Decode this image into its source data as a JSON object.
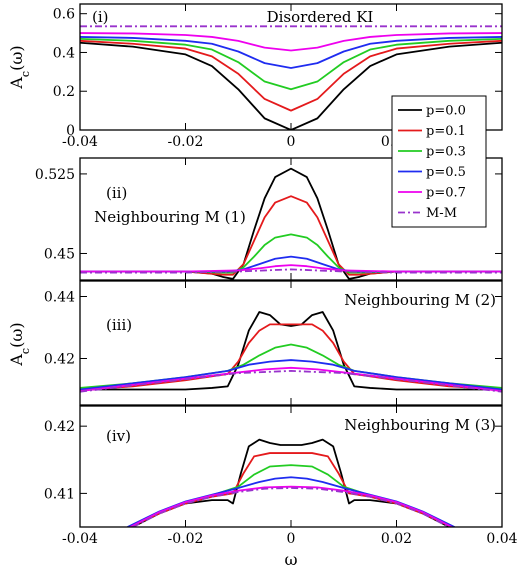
{
  "chart_data": [
    {
      "type": "line",
      "panel": "(i)",
      "annotation": "Disordered KI",
      "ylabel": "A_c(ω)",
      "xlim": [
        -0.04,
        0.04
      ],
      "ylim": [
        0,
        0.65
      ],
      "x_ticks": [
        -0.04,
        -0.02,
        0,
        0.02
      ],
      "x_tick_labels": [
        "-0.04",
        "-0.02",
        "0",
        "0.02"
      ],
      "y_ticks": [
        0,
        0.2,
        0.4,
        0.6
      ],
      "y_tick_labels": [
        "0",
        "0.2",
        "0.4",
        "0.6"
      ],
      "series": [
        {
          "name": "p=0.0",
          "color": "#000000",
          "dash": "",
          "x": [
            -0.04,
            -0.03,
            -0.02,
            -0.015,
            -0.01,
            -0.005,
            0,
            0.005,
            0.01,
            0.015,
            0.02,
            0.03,
            0.04
          ],
          "y": [
            0.45,
            0.43,
            0.39,
            0.33,
            0.21,
            0.06,
            0.0,
            0.06,
            0.21,
            0.33,
            0.39,
            0.43,
            0.45
          ]
        },
        {
          "name": "p=0.1",
          "color": "#e41a1c",
          "dash": "",
          "x": [
            -0.04,
            -0.03,
            -0.02,
            -0.015,
            -0.01,
            -0.005,
            0,
            0.005,
            0.01,
            0.015,
            0.02,
            0.03,
            0.04
          ],
          "y": [
            0.46,
            0.445,
            0.42,
            0.38,
            0.29,
            0.16,
            0.1,
            0.16,
            0.29,
            0.38,
            0.42,
            0.445,
            0.46
          ]
        },
        {
          "name": "p=0.3",
          "color": "#22cc22",
          "dash": "",
          "x": [
            -0.04,
            -0.03,
            -0.02,
            -0.015,
            -0.01,
            -0.005,
            0,
            0.005,
            0.01,
            0.015,
            0.02,
            0.03,
            0.04
          ],
          "y": [
            0.47,
            0.46,
            0.44,
            0.415,
            0.35,
            0.25,
            0.21,
            0.25,
            0.35,
            0.415,
            0.44,
            0.46,
            0.47
          ]
        },
        {
          "name": "p=0.5",
          "color": "#1f2cf0",
          "dash": "",
          "x": [
            -0.04,
            -0.03,
            -0.02,
            -0.015,
            -0.01,
            -0.005,
            0,
            0.005,
            0.01,
            0.015,
            0.02,
            0.03,
            0.04
          ],
          "y": [
            0.48,
            0.475,
            0.46,
            0.445,
            0.405,
            0.345,
            0.32,
            0.345,
            0.405,
            0.445,
            0.46,
            0.475,
            0.48
          ]
        },
        {
          "name": "p=0.7",
          "color": "#ee00ee",
          "dash": "",
          "x": [
            -0.04,
            -0.03,
            -0.02,
            -0.015,
            -0.01,
            -0.005,
            0,
            0.005,
            0.01,
            0.015,
            0.02,
            0.03,
            0.04
          ],
          "y": [
            0.5,
            0.498,
            0.49,
            0.48,
            0.46,
            0.425,
            0.41,
            0.425,
            0.46,
            0.48,
            0.49,
            0.498,
            0.5
          ]
        },
        {
          "name": "M-M",
          "color": "#9933cc",
          "dash": "7,3,2,3",
          "x": [
            -0.04,
            0,
            0.04
          ],
          "y": [
            0.535,
            0.535,
            0.535
          ]
        }
      ]
    },
    {
      "type": "line",
      "panel": "(ii)",
      "annotation": "Neighbouring M (1)",
      "ylabel": "",
      "xlim": [
        -0.04,
        0.04
      ],
      "ylim": [
        0.425,
        0.54
      ],
      "y_ticks": [
        0.45,
        0.525
      ],
      "y_tick_labels": [
        "0.45",
        "0.525"
      ],
      "series": [
        {
          "name": "p=0.0",
          "color": "#000000",
          "dash": "",
          "x": [
            -0.04,
            -0.02,
            -0.015,
            -0.013,
            -0.011,
            -0.009,
            -0.007,
            -0.005,
            -0.003,
            0,
            0.003,
            0.005,
            0.007,
            0.009,
            0.011,
            0.013,
            0.015,
            0.02,
            0.04
          ],
          "y": [
            0.433,
            0.433,
            0.431,
            0.428,
            0.426,
            0.44,
            0.472,
            0.502,
            0.522,
            0.53,
            0.522,
            0.502,
            0.472,
            0.44,
            0.426,
            0.428,
            0.431,
            0.433,
            0.433
          ]
        },
        {
          "name": "p=0.1",
          "color": "#e41a1c",
          "dash": "",
          "x": [
            -0.04,
            -0.02,
            -0.013,
            -0.011,
            -0.009,
            -0.007,
            -0.005,
            -0.003,
            0,
            0.003,
            0.005,
            0.007,
            0.009,
            0.011,
            0.013,
            0.02,
            0.04
          ],
          "y": [
            0.433,
            0.433,
            0.43,
            0.43,
            0.44,
            0.462,
            0.484,
            0.498,
            0.504,
            0.498,
            0.484,
            0.462,
            0.44,
            0.43,
            0.43,
            0.433,
            0.433
          ]
        },
        {
          "name": "p=0.3",
          "color": "#22cc22",
          "dash": "",
          "x": [
            -0.04,
            -0.02,
            -0.013,
            -0.011,
            -0.009,
            -0.007,
            -0.005,
            -0.003,
            0,
            0.003,
            0.005,
            0.007,
            0.009,
            0.011,
            0.013,
            0.02,
            0.04
          ],
          "y": [
            0.433,
            0.433,
            0.432,
            0.432,
            0.437,
            0.447,
            0.458,
            0.465,
            0.468,
            0.465,
            0.458,
            0.447,
            0.437,
            0.432,
            0.432,
            0.433,
            0.433
          ]
        },
        {
          "name": "p=0.5",
          "color": "#1f2cf0",
          "dash": "",
          "x": [
            -0.04,
            -0.02,
            -0.012,
            -0.009,
            -0.006,
            -0.003,
            0,
            0.003,
            0.006,
            0.009,
            0.012,
            0.02,
            0.04
          ],
          "y": [
            0.433,
            0.433,
            0.433,
            0.435,
            0.44,
            0.445,
            0.447,
            0.445,
            0.44,
            0.435,
            0.433,
            0.433,
            0.433
          ]
        },
        {
          "name": "p=0.7",
          "color": "#ee00ee",
          "dash": "",
          "x": [
            -0.04,
            -0.02,
            -0.01,
            -0.006,
            -0.003,
            0,
            0.003,
            0.006,
            0.01,
            0.02,
            0.04
          ],
          "y": [
            0.433,
            0.433,
            0.434,
            0.436,
            0.438,
            0.439,
            0.438,
            0.436,
            0.434,
            0.433,
            0.433
          ]
        },
        {
          "name": "M-M",
          "color": "#9933cc",
          "dash": "7,3,2,3",
          "x": [
            -0.04,
            -0.02,
            -0.01,
            -0.005,
            0,
            0.005,
            0.01,
            0.02,
            0.04
          ],
          "y": [
            0.432,
            0.432,
            0.433,
            0.434,
            0.435,
            0.434,
            0.433,
            0.432,
            0.432
          ]
        }
      ]
    },
    {
      "type": "line",
      "panel": "(iii)",
      "annotation": "Neighbouring M (2)",
      "ylabel": "A_c(ω)",
      "xlim": [
        -0.04,
        0.04
      ],
      "ylim": [
        0.405,
        0.445
      ],
      "y_ticks": [
        0.42,
        0.44
      ],
      "y_tick_labels": [
        "0.42",
        "0.44"
      ],
      "series": [
        {
          "name": "p=0.0",
          "color": "#000000",
          "dash": "",
          "x": [
            -0.04,
            -0.03,
            -0.02,
            -0.015,
            -0.012,
            -0.01,
            -0.008,
            -0.006,
            -0.004,
            -0.002,
            0,
            0.002,
            0.004,
            0.006,
            0.008,
            0.01,
            0.012,
            0.015,
            0.02,
            0.03,
            0.04
          ],
          "y": [
            0.41,
            0.41,
            0.41,
            0.4105,
            0.411,
            0.418,
            0.429,
            0.435,
            0.434,
            0.431,
            0.4305,
            0.431,
            0.434,
            0.435,
            0.429,
            0.418,
            0.411,
            0.4105,
            0.41,
            0.41,
            0.41
          ]
        },
        {
          "name": "p=0.1",
          "color": "#e41a1c",
          "dash": "",
          "x": [
            -0.04,
            -0.03,
            -0.02,
            -0.012,
            -0.01,
            -0.008,
            -0.006,
            -0.004,
            -0.002,
            0,
            0.002,
            0.004,
            0.006,
            0.008,
            0.01,
            0.012,
            0.02,
            0.03,
            0.04
          ],
          "y": [
            0.41,
            0.411,
            0.413,
            0.415,
            0.419,
            0.425,
            0.429,
            0.431,
            0.431,
            0.431,
            0.431,
            0.431,
            0.429,
            0.425,
            0.419,
            0.415,
            0.413,
            0.411,
            0.41
          ]
        },
        {
          "name": "p=0.3",
          "color": "#22cc22",
          "dash": "",
          "x": [
            -0.04,
            -0.03,
            -0.02,
            -0.012,
            -0.009,
            -0.006,
            -0.003,
            0,
            0.003,
            0.006,
            0.009,
            0.012,
            0.02,
            0.03,
            0.04
          ],
          "y": [
            0.4105,
            0.412,
            0.414,
            0.416,
            0.418,
            0.421,
            0.4235,
            0.4245,
            0.4235,
            0.421,
            0.418,
            0.416,
            0.414,
            0.412,
            0.4105
          ]
        },
        {
          "name": "p=0.5",
          "color": "#1f2cf0",
          "dash": "",
          "x": [
            -0.04,
            -0.03,
            -0.02,
            -0.012,
            -0.008,
            -0.004,
            0,
            0.004,
            0.008,
            0.012,
            0.02,
            0.03,
            0.04
          ],
          "y": [
            0.41,
            0.412,
            0.414,
            0.416,
            0.418,
            0.419,
            0.4195,
            0.419,
            0.418,
            0.416,
            0.414,
            0.412,
            0.41
          ]
        },
        {
          "name": "p=0.7",
          "color": "#ee00ee",
          "dash": "",
          "x": [
            -0.04,
            -0.03,
            -0.02,
            -0.01,
            -0.005,
            0,
            0.005,
            0.01,
            0.02,
            0.03,
            0.04
          ],
          "y": [
            0.4095,
            0.4115,
            0.4135,
            0.4155,
            0.4165,
            0.417,
            0.4165,
            0.4155,
            0.4135,
            0.4115,
            0.4095
          ]
        },
        {
          "name": "M-M",
          "color": "#9933cc",
          "dash": "7,3,2,3",
          "x": [
            -0.04,
            -0.03,
            -0.02,
            -0.01,
            0,
            0.01,
            0.02,
            0.03,
            0.04
          ],
          "y": [
            0.4093,
            0.4113,
            0.4133,
            0.4153,
            0.416,
            0.4153,
            0.4133,
            0.4113,
            0.4093
          ]
        }
      ]
    },
    {
      "type": "line",
      "panel": "(iv)",
      "annotation": "Neighbouring M (3)",
      "ylabel": "",
      "xlabel": "ω",
      "xlim": [
        -0.04,
        0.04
      ],
      "ylim": [
        0.405,
        0.423
      ],
      "x_ticks": [
        -0.04,
        -0.02,
        0,
        0.02,
        0.04
      ],
      "x_tick_labels": [
        "-0.04",
        "-0.02",
        "0",
        "0.02",
        "0.04"
      ],
      "y_ticks": [
        0.41,
        0.42
      ],
      "y_tick_labels": [
        "0.41",
        "0.42"
      ],
      "series": [
        {
          "name": "p=0.0",
          "color": "#000000",
          "dash": "",
          "x": [
            -0.03,
            -0.025,
            -0.02,
            -0.015,
            -0.012,
            -0.011,
            -0.0095,
            -0.008,
            -0.006,
            -0.004,
            -0.002,
            0,
            0.002,
            0.004,
            0.006,
            0.008,
            0.0095,
            0.011,
            0.012,
            0.015,
            0.02,
            0.025,
            0.03
          ],
          "y": [
            0.405,
            0.407,
            0.4085,
            0.409,
            0.409,
            0.4085,
            0.413,
            0.417,
            0.418,
            0.4175,
            0.4172,
            0.4172,
            0.4172,
            0.4175,
            0.418,
            0.417,
            0.413,
            0.4085,
            0.409,
            0.409,
            0.4085,
            0.407,
            0.405
          ]
        },
        {
          "name": "p=0.1",
          "color": "#e41a1c",
          "dash": "",
          "x": [
            -0.0305,
            -0.025,
            -0.02,
            -0.015,
            -0.011,
            -0.009,
            -0.007,
            -0.004,
            0,
            0.004,
            0.007,
            0.009,
            0.011,
            0.015,
            0.02,
            0.025,
            0.0305
          ],
          "y": [
            0.405,
            0.407,
            0.4085,
            0.4095,
            0.41,
            0.413,
            0.4155,
            0.416,
            0.416,
            0.416,
            0.4155,
            0.413,
            0.41,
            0.4095,
            0.4085,
            0.407,
            0.405
          ]
        },
        {
          "name": "p=0.3",
          "color": "#22cc22",
          "dash": "",
          "x": [
            -0.0307,
            -0.025,
            -0.02,
            -0.015,
            -0.01,
            -0.007,
            -0.004,
            0,
            0.004,
            0.007,
            0.01,
            0.015,
            0.02,
            0.025,
            0.0307
          ],
          "y": [
            0.405,
            0.4072,
            0.4087,
            0.4097,
            0.411,
            0.4128,
            0.414,
            0.4142,
            0.414,
            0.4128,
            0.411,
            0.4097,
            0.4087,
            0.4072,
            0.405
          ]
        },
        {
          "name": "p=0.5",
          "color": "#1f2cf0",
          "dash": "",
          "x": [
            -0.031,
            -0.025,
            -0.02,
            -0.015,
            -0.01,
            -0.006,
            -0.003,
            0,
            0.003,
            0.006,
            0.01,
            0.015,
            0.02,
            0.025,
            0.031
          ],
          "y": [
            0.405,
            0.4073,
            0.4088,
            0.4098,
            0.4108,
            0.4117,
            0.4122,
            0.4124,
            0.4122,
            0.4117,
            0.4108,
            0.4098,
            0.4088,
            0.4073,
            0.405
          ]
        },
        {
          "name": "p=0.7",
          "color": "#ee00ee",
          "dash": "",
          "x": [
            -0.0305,
            -0.025,
            -0.02,
            -0.015,
            -0.01,
            -0.005,
            0,
            0.005,
            0.01,
            0.015,
            0.02,
            0.025,
            0.0305
          ],
          "y": [
            0.405,
            0.4072,
            0.4087,
            0.4097,
            0.4104,
            0.4109,
            0.411,
            0.4109,
            0.4104,
            0.4097,
            0.4087,
            0.4072,
            0.405
          ]
        },
        {
          "name": "M-M",
          "color": "#9933cc",
          "dash": "7,3,2,3",
          "x": [
            -0.03,
            -0.025,
            -0.02,
            -0.015,
            -0.01,
            -0.005,
            0,
            0.005,
            0.01,
            0.015,
            0.02,
            0.025,
            0.03
          ],
          "y": [
            0.405,
            0.407,
            0.4085,
            0.4095,
            0.4102,
            0.4107,
            0.4108,
            0.4107,
            0.4102,
            0.4095,
            0.4085,
            0.407,
            0.405
          ]
        }
      ]
    }
  ],
  "legend": {
    "placement": "right",
    "entries": [
      {
        "label": "p=0.0",
        "color": "#000000",
        "dash": ""
      },
      {
        "label": "p=0.1",
        "color": "#e41a1c",
        "dash": ""
      },
      {
        "label": "p=0.3",
        "color": "#22cc22",
        "dash": ""
      },
      {
        "label": "p=0.5",
        "color": "#1f2cf0",
        "dash": ""
      },
      {
        "label": "p=0.7",
        "color": "#ee00ee",
        "dash": ""
      },
      {
        "label": "M-M",
        "color": "#9933cc",
        "dash": "7,3,2,3"
      }
    ]
  }
}
